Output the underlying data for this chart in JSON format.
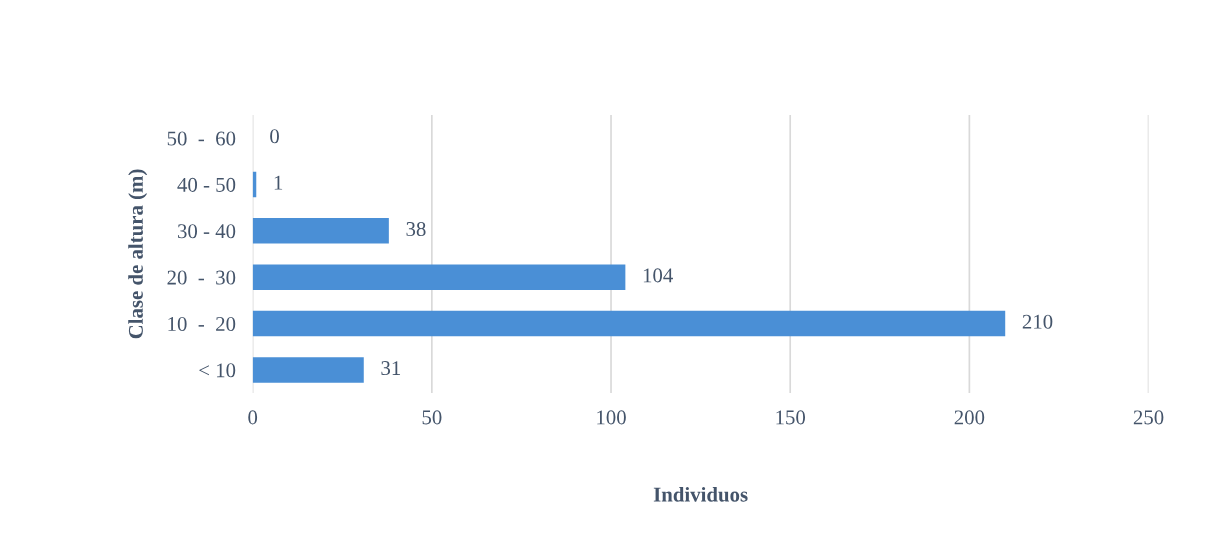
{
  "chart_data": {
    "type": "bar",
    "orientation": "horizontal",
    "xlabel": "Individuos",
    "ylabel": "Clase de altura (m)",
    "categories": [
      "50  -  60",
      "40 - 50",
      "30 - 40",
      "20  -  30",
      "10  -  20",
      "< 10"
    ],
    "values": [
      0,
      1,
      38,
      104,
      210,
      31
    ],
    "color": "#4a8fd6",
    "data_labels": true,
    "xlim": [
      0,
      250
    ],
    "xticks": [
      0,
      50,
      100,
      150,
      200,
      250
    ],
    "grid": "x"
  }
}
